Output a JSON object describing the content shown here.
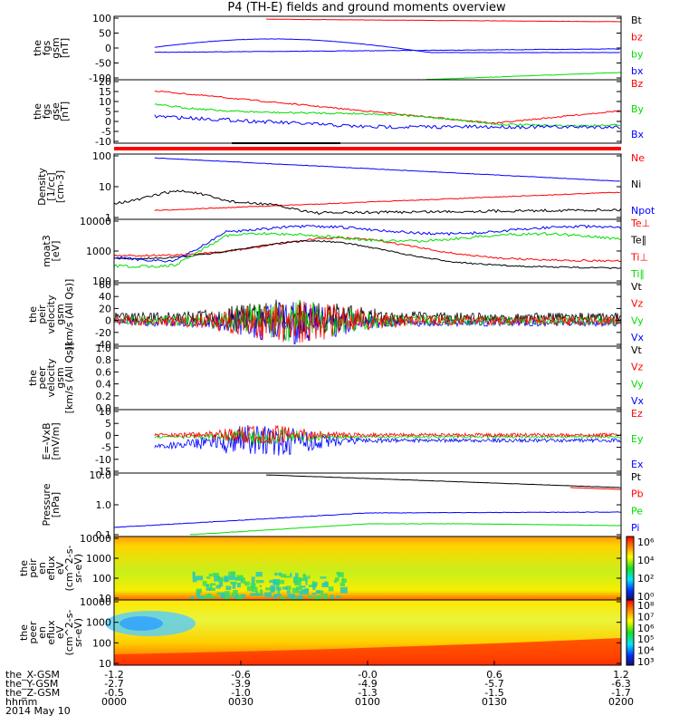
{
  "title": "P4 (TH-E) fields and ground moments overview",
  "date_label": "2014 May 10",
  "colors": {
    "black": "#000000",
    "red": "#ff0000",
    "green": "#00dd00",
    "blue": "#0000ff"
  },
  "ephemeris": {
    "rows": [
      {
        "label": "the_X-GSM",
        "values": [
          "-1.2",
          "-0.6",
          "-0.0",
          "0.6",
          "1.2"
        ]
      },
      {
        "label": "the_Y-GSM",
        "values": [
          "-2.7",
          "-3.9",
          "-4.9",
          "-5.7",
          "-6.3"
        ]
      },
      {
        "label": "the_Z-GSM",
        "values": [
          "-0.5",
          "-1.0",
          "-1.3",
          "-1.5",
          "-1.7"
        ]
      },
      {
        "label": "hhmm",
        "values": [
          "0000",
          "0030",
          "0100",
          "0130",
          "0200"
        ]
      }
    ]
  },
  "chart_data": [
    {
      "id": "p1",
      "type": "line",
      "ylabel": [
        "the",
        "fgs",
        "gsm",
        "[nT]"
      ],
      "yticks": [
        "100",
        "50",
        "0",
        "-50",
        "-100"
      ],
      "legend": [
        {
          "name": "Bt",
          "color": "black"
        },
        {
          "name": "bz",
          "color": "red"
        },
        {
          "name": "by",
          "color": "green"
        },
        {
          "name": "bx",
          "color": "blue"
        }
      ]
    },
    {
      "id": "p2",
      "type": "line",
      "ylabel": [
        "the",
        "fgs",
        "gse",
        "[nT]"
      ],
      "yticks": [
        "20",
        "15",
        "10",
        "5",
        "0",
        "-5",
        "-10"
      ],
      "legend": [
        {
          "name": "Bz",
          "color": "red"
        },
        {
          "name": "By",
          "color": "green"
        },
        {
          "name": "Bx",
          "color": "blue"
        }
      ]
    },
    {
      "id": "p3",
      "type": "line",
      "ylabel": [
        "Density",
        "[1/cc]",
        "[cm-3]"
      ],
      "yticks": [
        "100",
        "10",
        "1"
      ],
      "legend": [
        {
          "name": "Ne",
          "color": "red"
        },
        {
          "name": "Ni",
          "color": "black"
        },
        {
          "name": "Npot",
          "color": "blue"
        }
      ]
    },
    {
      "id": "p4",
      "type": "line",
      "ylabel": [
        "moat3",
        "[eV]"
      ],
      "yticks": [
        "10000",
        "1000",
        "100"
      ],
      "legend": [
        {
          "name": "Te⊥",
          "color": "red"
        },
        {
          "name": "Te∥",
          "color": "black"
        },
        {
          "name": "Ti⊥",
          "color": "red"
        },
        {
          "name": "Ti∥",
          "color": "green"
        }
      ]
    },
    {
      "id": "p5",
      "type": "line",
      "ylabel": [
        "the",
        "peir",
        "velocity",
        "gsm",
        "[km/s (All Qs)]"
      ],
      "yticks": [
        "60",
        "40",
        "20",
        "0",
        "-20",
        "-40"
      ],
      "legend": [
        {
          "name": "Vt",
          "color": "black"
        },
        {
          "name": "Vz",
          "color": "red"
        },
        {
          "name": "Vy",
          "color": "green"
        },
        {
          "name": "Vx",
          "color": "blue"
        }
      ]
    },
    {
      "id": "p6",
      "type": "line",
      "ylabel": [
        "the",
        "peer",
        "velocity",
        "gsm",
        "[km/s (All Qs)]"
      ],
      "yticks": [
        "1.0",
        "0.8",
        "0.6",
        "0.4",
        "0.2",
        "0.0"
      ],
      "legend": [
        {
          "name": "Vt",
          "color": "black"
        },
        {
          "name": "Vz",
          "color": "red"
        },
        {
          "name": "Vy",
          "color": "green"
        },
        {
          "name": "Vx",
          "color": "blue"
        }
      ]
    },
    {
      "id": "p7",
      "type": "line",
      "ylabel": [
        "E=-VxB",
        "[mV/m]"
      ],
      "yticks": [
        "10",
        "5",
        "0",
        "-5",
        "-10",
        "-15"
      ],
      "legend": [
        {
          "name": "Ez",
          "color": "red"
        },
        {
          "name": "Ey",
          "color": "green"
        },
        {
          "name": "Ex",
          "color": "blue"
        }
      ]
    },
    {
      "id": "p8",
      "type": "line",
      "ylabel": [
        "Pressure",
        "[nPa]"
      ],
      "yticks": [
        "10.0",
        "1.0",
        "0.1"
      ],
      "legend": [
        {
          "name": "Pt",
          "color": "black"
        },
        {
          "name": "Pb",
          "color": "red"
        },
        {
          "name": "Pe",
          "color": "green"
        },
        {
          "name": "Pi",
          "color": "blue"
        }
      ]
    },
    {
      "id": "p9",
      "type": "heatmap",
      "ylabel": [
        "the",
        "peir",
        "en",
        "eflux",
        "eV",
        "(cm^2-s-",
        "sr-eV)"
      ],
      "yticks": [
        "10000",
        "1000",
        "100",
        "10"
      ],
      "colorbar": [
        "10⁶",
        "10⁴",
        "10²",
        "10⁰"
      ]
    },
    {
      "id": "p10",
      "type": "heatmap",
      "ylabel": [
        "the",
        "peer",
        "en",
        "eflux",
        "eV",
        "(cm^2-s-",
        "sr-eV)"
      ],
      "yticks": [
        "10000",
        "1000",
        "100",
        "10"
      ],
      "colorbar": [
        "10⁸",
        "10⁷",
        "10⁶",
        "10⁵",
        "10⁴",
        "10³"
      ]
    }
  ]
}
